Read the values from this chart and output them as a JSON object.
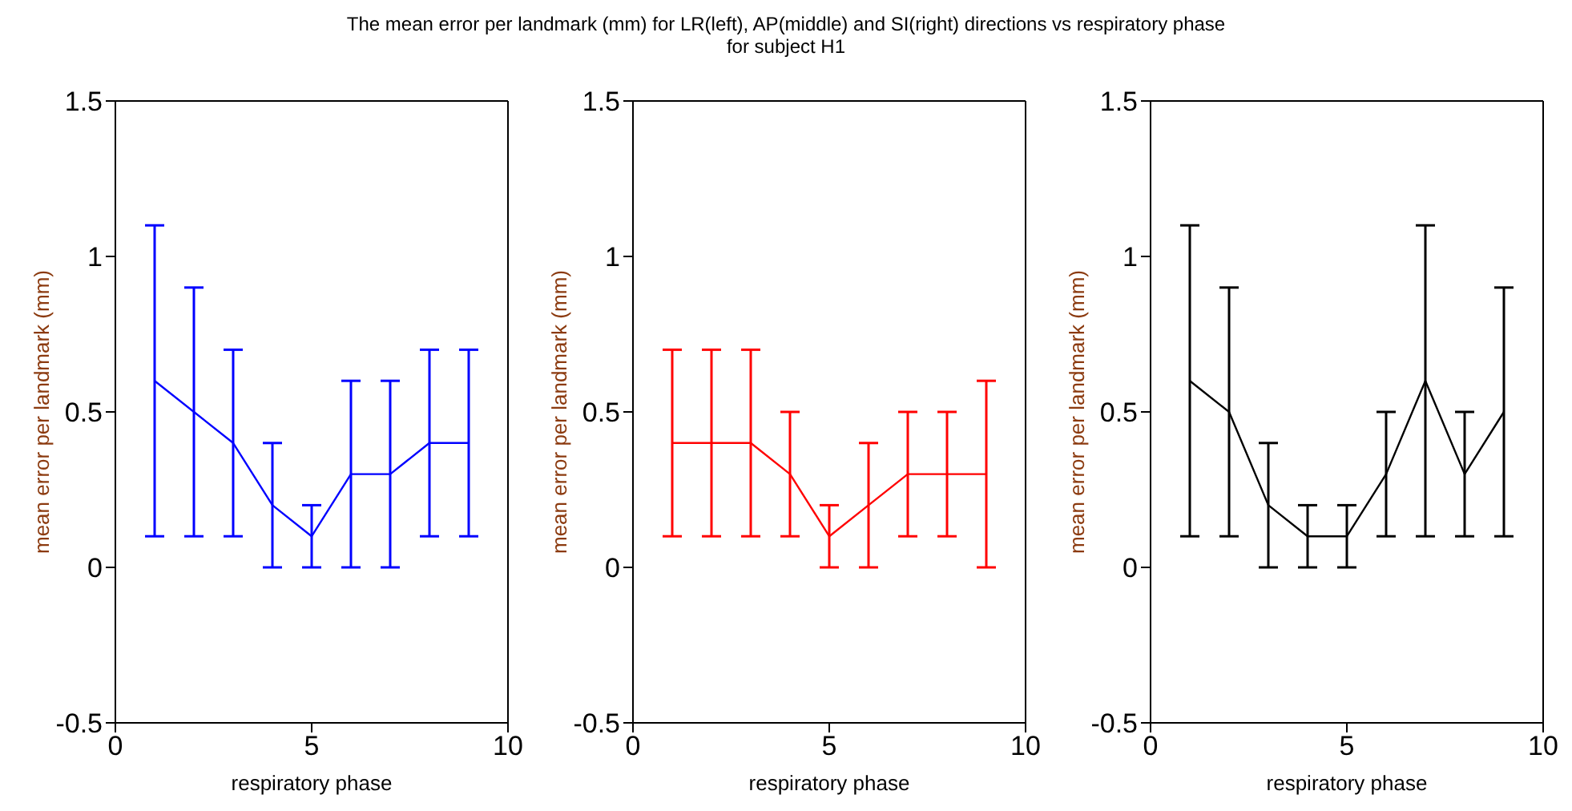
{
  "chart_data": [
    {
      "type": "line",
      "title": "The mean error per landmark (mm) for LR(left), AP(middle) and SI(right) directions vs respiratory phase\nfor subject H1",
      "xlabel": "respiratory phase",
      "ylabel": "mean error per landmark (mm)",
      "x": [
        1,
        2,
        3,
        4,
        5,
        6,
        7,
        8,
        9
      ],
      "marker": "none",
      "xlim": [
        0,
        10
      ],
      "xticks": [
        0,
        5,
        10
      ],
      "ylim": [
        -0.5,
        1.5
      ],
      "yticks": [
        -0.5,
        0,
        0.5,
        1,
        1.5
      ],
      "series": [
        {
          "color": "#0000ff",
          "values": [
            0.6,
            0.5,
            0.4,
            0.2,
            0.1,
            0.3,
            0.3,
            0.4,
            0.4
          ],
          "errors": [
            0.5,
            0.4,
            0.3,
            0.2,
            0.1,
            0.3,
            0.3,
            0.3,
            0.3
          ]
        }
      ]
    },
    {
      "type": "line",
      "xlabel": "respiratory phase",
      "ylabel": "mean error per landmark (mm)",
      "x": [
        1,
        2,
        3,
        4,
        5,
        6,
        7,
        8,
        9
      ],
      "marker": "none",
      "xlim": [
        0,
        10
      ],
      "xticks": [
        0,
        5,
        10
      ],
      "ylim": [
        -0.5,
        1.5
      ],
      "yticks": [
        -0.5,
        0,
        0.5,
        1,
        1.5
      ],
      "series": [
        {
          "color": "#ff0000",
          "values": [
            0.4,
            0.4,
            0.4,
            0.3,
            0.1,
            0.2,
            0.3,
            0.3,
            0.3
          ],
          "errors": [
            0.3,
            0.3,
            0.3,
            0.2,
            0.1,
            0.2,
            0.2,
            0.2,
            0.3
          ]
        }
      ]
    },
    {
      "type": "line",
      "xlabel": "respiratory phase",
      "ylabel": "mean error per landmark (mm)",
      "x": [
        1,
        2,
        3,
        4,
        5,
        6,
        7,
        8,
        9
      ],
      "marker": "none",
      "xlim": [
        0,
        10
      ],
      "xticks": [
        0,
        5,
        10
      ],
      "ylim": [
        -0.5,
        1.5
      ],
      "yticks": [
        -0.5,
        0,
        0.5,
        1,
        1.5
      ],
      "series": [
        {
          "color": "#000000",
          "values": [
            0.6,
            0.5,
            0.2,
            0.1,
            0.1,
            0.3,
            0.6,
            0.3,
            0.5
          ],
          "errors": [
            0.5,
            0.4,
            0.2,
            0.1,
            0.1,
            0.2,
            0.5,
            0.2,
            0.4
          ]
        }
      ]
    }
  ]
}
